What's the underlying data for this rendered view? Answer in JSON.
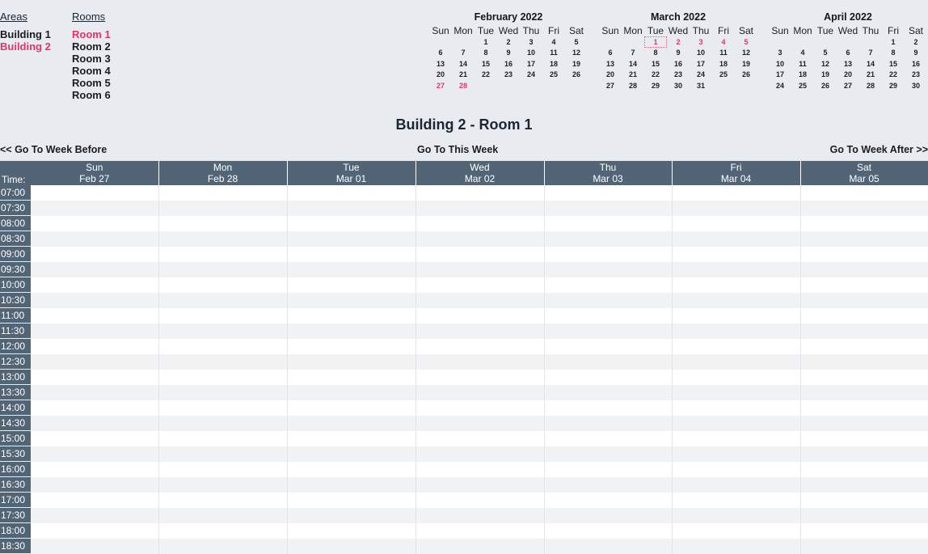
{
  "areas": {
    "header": "Areas",
    "items": [
      "Building 1",
      "Building 2"
    ],
    "selected": "Building 2"
  },
  "rooms": {
    "header": "Rooms",
    "items": [
      "Room 1",
      "Room 2",
      "Room 3",
      "Room 4",
      "Room 5",
      "Room 6"
    ],
    "selected": "Room 1"
  },
  "colors": {
    "accent": "#e5336a",
    "header_bg": "#526577",
    "page_bg": "#e8ebef"
  },
  "day_headers": [
    "Sun",
    "Mon",
    "Tue",
    "Wed",
    "Thu",
    "Fri",
    "Sat"
  ],
  "calendars": [
    {
      "title": "February 2022",
      "weeks": [
        [
          "",
          "",
          "1",
          "2",
          "3",
          "4",
          "5"
        ],
        [
          "6",
          "7",
          "8",
          "9",
          "10",
          "11",
          "12"
        ],
        [
          "13",
          "14",
          "15",
          "16",
          "17",
          "18",
          "19"
        ],
        [
          "20",
          "21",
          "22",
          "23",
          "24",
          "25",
          "26"
        ],
        [
          "27",
          "28",
          "",
          "",
          "",
          "",
          ""
        ]
      ],
      "highlighted": [
        "27",
        "28"
      ],
      "today": ""
    },
    {
      "title": "March 2022",
      "weeks": [
        [
          "",
          "",
          "1",
          "2",
          "3",
          "4",
          "5"
        ],
        [
          "6",
          "7",
          "8",
          "9",
          "10",
          "11",
          "12"
        ],
        [
          "13",
          "14",
          "15",
          "16",
          "17",
          "18",
          "19"
        ],
        [
          "20",
          "21",
          "22",
          "23",
          "24",
          "25",
          "26"
        ],
        [
          "27",
          "28",
          "29",
          "30",
          "31",
          "",
          ""
        ]
      ],
      "highlighted": [
        "1",
        "2",
        "3",
        "4",
        "5"
      ],
      "today": "1"
    },
    {
      "title": "April 2022",
      "weeks": [
        [
          "",
          "",
          "",
          "",
          "",
          "1",
          "2"
        ],
        [
          "3",
          "4",
          "5",
          "6",
          "7",
          "8",
          "9"
        ],
        [
          "10",
          "11",
          "12",
          "13",
          "14",
          "15",
          "16"
        ],
        [
          "17",
          "18",
          "19",
          "20",
          "21",
          "22",
          "23"
        ],
        [
          "24",
          "25",
          "26",
          "27",
          "28",
          "29",
          "30"
        ]
      ],
      "highlighted": [],
      "today": ""
    }
  ],
  "page_title": "Building 2 - Room 1",
  "week_nav": {
    "before": "<< Go To Week Before",
    "this": "Go To This Week",
    "after": "Go To Week After >>"
  },
  "grid": {
    "time_label": "Time:",
    "days": [
      {
        "name": "Sun",
        "date": "Feb 27"
      },
      {
        "name": "Mon",
        "date": "Feb 28"
      },
      {
        "name": "Tue",
        "date": "Mar 01"
      },
      {
        "name": "Wed",
        "date": "Mar 02"
      },
      {
        "name": "Thu",
        "date": "Mar 03"
      },
      {
        "name": "Fri",
        "date": "Mar 04"
      },
      {
        "name": "Sat",
        "date": "Mar 05"
      }
    ],
    "times": [
      "07:00",
      "07:30",
      "08:00",
      "08:30",
      "09:00",
      "09:30",
      "10:00",
      "10:30",
      "11:00",
      "11:30",
      "12:00",
      "12:30",
      "13:00",
      "13:30",
      "14:00",
      "14:30",
      "15:00",
      "15:30",
      "16:00",
      "16:30",
      "17:00",
      "17:30",
      "18:00",
      "18:30"
    ]
  }
}
